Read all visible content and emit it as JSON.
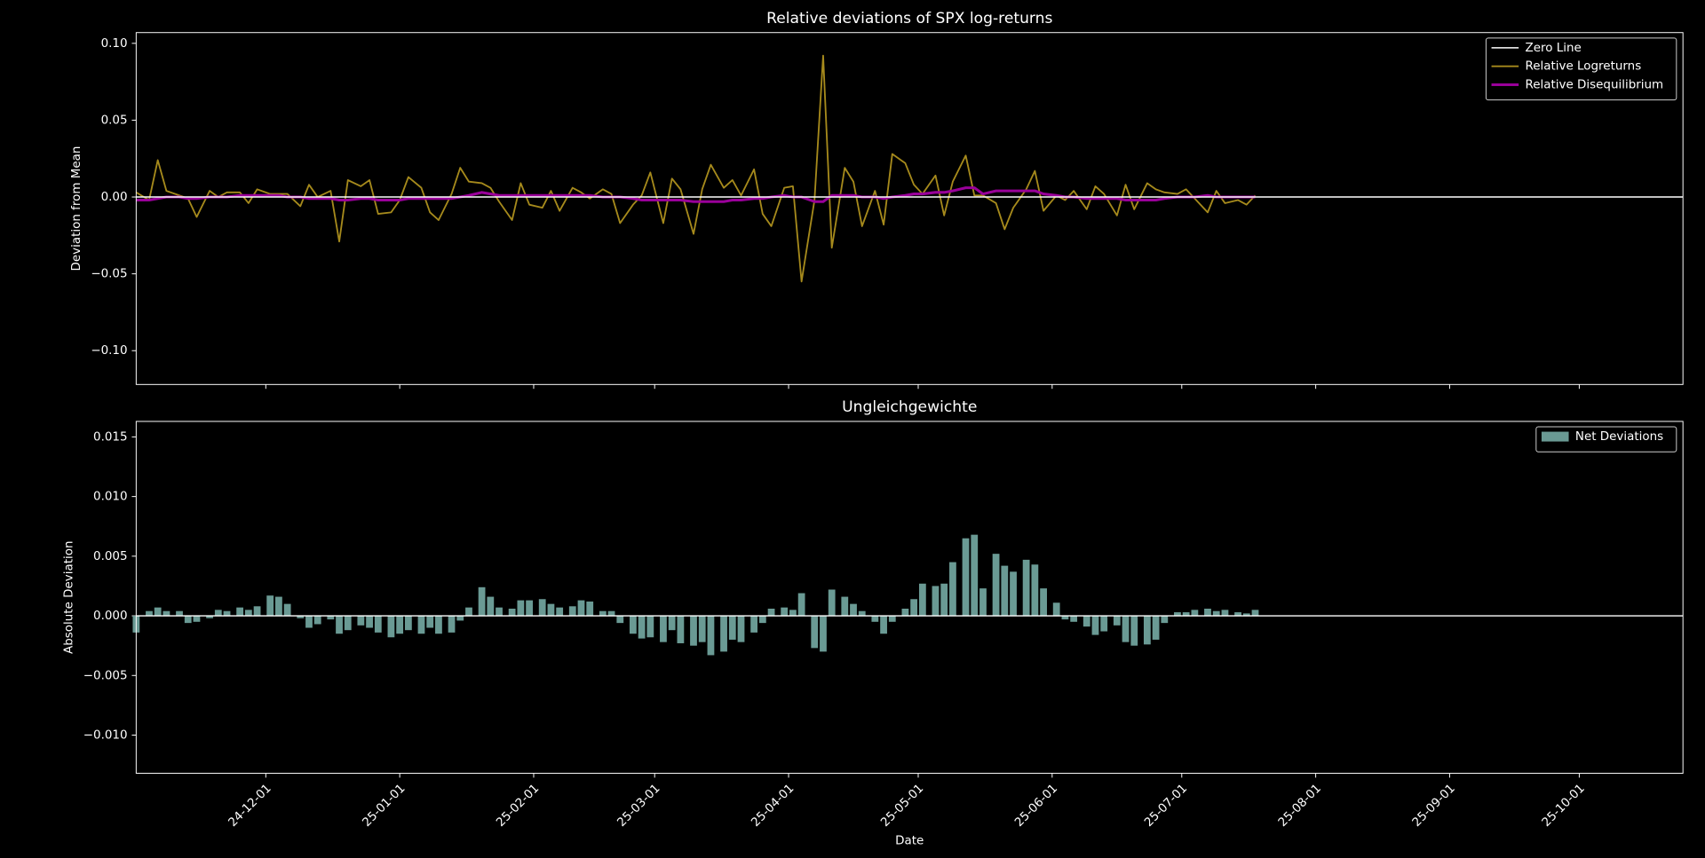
{
  "chart_data": [
    {
      "type": "line",
      "title": "Relative deviations of SPX log-returns",
      "ylabel": "Deviation from Mean",
      "x": [
        "2024-11-01",
        "2024-11-04",
        "2024-11-06",
        "2024-11-08",
        "2024-11-11",
        "2024-11-13",
        "2024-11-15",
        "2024-11-18",
        "2024-11-20",
        "2024-11-22",
        "2024-11-25",
        "2024-11-27",
        "2024-11-29",
        "2024-12-02",
        "2024-12-04",
        "2024-12-06",
        "2024-12-09",
        "2024-12-11",
        "2024-12-13",
        "2024-12-16",
        "2024-12-18",
        "2024-12-20",
        "2024-12-23",
        "2024-12-25",
        "2024-12-27",
        "2024-12-30",
        "2025-01-01",
        "2025-01-03",
        "2025-01-06",
        "2025-01-08",
        "2025-01-10",
        "2025-01-13",
        "2025-01-15",
        "2025-01-17",
        "2025-01-20",
        "2025-01-22",
        "2025-01-24",
        "2025-01-27",
        "2025-01-29",
        "2025-01-31",
        "2025-02-03",
        "2025-02-05",
        "2025-02-07",
        "2025-02-10",
        "2025-02-12",
        "2025-02-14",
        "2025-02-17",
        "2025-02-19",
        "2025-02-21",
        "2025-02-24",
        "2025-02-26",
        "2025-02-28",
        "2025-03-03",
        "2025-03-05",
        "2025-03-07",
        "2025-03-10",
        "2025-03-12",
        "2025-03-14",
        "2025-03-17",
        "2025-03-19",
        "2025-03-21",
        "2025-03-24",
        "2025-03-26",
        "2025-03-28",
        "2025-03-31",
        "2025-04-02",
        "2025-04-04",
        "2025-04-07",
        "2025-04-09",
        "2025-04-11",
        "2025-04-14",
        "2025-04-16",
        "2025-04-18",
        "2025-04-21",
        "2025-04-23",
        "2025-04-25",
        "2025-04-28",
        "2025-04-30",
        "2025-05-02",
        "2025-05-05",
        "2025-05-07",
        "2025-05-09",
        "2025-05-12",
        "2025-05-14",
        "2025-05-16",
        "2025-05-19",
        "2025-05-21",
        "2025-05-23",
        "2025-05-26",
        "2025-05-28",
        "2025-05-30",
        "2025-06-02",
        "2025-06-04",
        "2025-06-06",
        "2025-06-09",
        "2025-06-11",
        "2025-06-13",
        "2025-06-16",
        "2025-06-18",
        "2025-06-20",
        "2025-06-23",
        "2025-06-25",
        "2025-06-27",
        "2025-06-30",
        "2025-07-02",
        "2025-07-04",
        "2025-07-07",
        "2025-07-09",
        "2025-07-11",
        "2025-07-14",
        "2025-07-16",
        "2025-07-18"
      ],
      "hline": {
        "name": "Zero Line",
        "color": "#ffffff",
        "value": 0
      },
      "series": [
        {
          "name": "Relative Logreturns",
          "color": "#a68a1c",
          "width": 1.5,
          "values": [
            0.003,
            -0.002,
            0.024,
            0.004,
            0.001,
            -0.001,
            -0.013,
            0.004,
            0.0,
            0.003,
            0.003,
            -0.004,
            0.005,
            0.002,
            0.002,
            0.002,
            -0.006,
            0.008,
            0.0,
            0.004,
            -0.029,
            0.011,
            0.007,
            0.011,
            -0.011,
            -0.01,
            -0.002,
            0.013,
            0.006,
            -0.01,
            -0.015,
            0.002,
            0.019,
            0.01,
            0.009,
            0.006,
            -0.003,
            -0.015,
            0.009,
            -0.005,
            -0.007,
            0.004,
            -0.009,
            0.006,
            0.003,
            -0.001,
            0.005,
            0.002,
            -0.017,
            -0.005,
            0.001,
            0.016,
            -0.017,
            0.012,
            0.005,
            -0.024,
            0.005,
            0.021,
            0.006,
            0.011,
            0.001,
            0.018,
            -0.011,
            -0.019,
            0.006,
            0.007,
            -0.055,
            -0.002,
            0.092,
            -0.033,
            0.019,
            0.01,
            -0.019,
            0.004,
            -0.018,
            0.028,
            0.022,
            0.008,
            0.002,
            0.014,
            -0.012,
            0.01,
            0.027,
            0.001,
            0.001,
            -0.004,
            -0.021,
            -0.007,
            0.005,
            0.017,
            -0.009,
            0.001,
            -0.002,
            0.004,
            -0.008,
            0.007,
            0.002,
            -0.012,
            0.008,
            -0.008,
            0.009,
            0.005,
            0.003,
            0.002,
            0.005,
            -0.001,
            -0.01,
            0.004,
            -0.004,
            -0.002,
            -0.005,
            0.001
          ]
        },
        {
          "name": "Relative Disequilibrium",
          "color": "#990099",
          "width": 2.5,
          "values": [
            -0.002,
            -0.002,
            -0.001,
            0,
            0,
            -0.001,
            -0.001,
            0,
            0,
            0,
            0.001,
            0.001,
            0.001,
            0.001,
            0.001,
            0,
            0,
            -0.001,
            -0.001,
            -0.001,
            -0.002,
            -0.002,
            -0.001,
            -0.001,
            -0.002,
            -0.002,
            -0.002,
            -0.001,
            -0.001,
            -0.001,
            -0.001,
            -0.001,
            0,
            0.001,
            0.003,
            0.002,
            0.001,
            0.001,
            0.001,
            0.001,
            0.001,
            0.001,
            0.001,
            0.001,
            0.001,
            0.001,
            0,
            0,
            0,
            -0.001,
            -0.002,
            -0.002,
            -0.002,
            -0.002,
            -0.002,
            -0.003,
            -0.003,
            -0.003,
            -0.003,
            -0.002,
            -0.002,
            -0.001,
            -0.001,
            0,
            0.001,
            0,
            0,
            -0.003,
            -0.003,
            0.001,
            0.001,
            0.001,
            0,
            0,
            -0.001,
            0,
            0.001,
            0.002,
            0.002,
            0.003,
            0.003,
            0.004,
            0.006,
            0.006,
            0.002,
            0.004,
            0.004,
            0.004,
            0.004,
            0.004,
            0.002,
            0.001,
            0,
            0,
            -0.001,
            -0.001,
            -0.001,
            -0.001,
            -0.002,
            -0.002,
            -0.002,
            -0.002,
            -0.001,
            0,
            0,
            0,
            0.001,
            0,
            0,
            0,
            0,
            0
          ]
        }
      ],
      "xlim": [
        "2024-11-01",
        "2025-10-25"
      ],
      "ylim": [
        -0.122,
        0.107
      ],
      "yticks": [
        {
          "value": -0.1,
          "label": "−0.10"
        },
        {
          "value": -0.05,
          "label": "−0.05"
        },
        {
          "value": 0,
          "label": "0.00"
        },
        {
          "value": 0.05,
          "label": "0.05"
        },
        {
          "value": 0.1,
          "label": "0.10"
        }
      ],
      "legend": "upper right",
      "grid": false
    },
    {
      "type": "bar",
      "title": "Ungleichgewichte",
      "ylabel": "Absolute Deviation",
      "xlabel": "Date",
      "x": [
        "2024-11-01",
        "2024-11-04",
        "2024-11-06",
        "2024-11-08",
        "2024-11-11",
        "2024-11-13",
        "2024-11-15",
        "2024-11-18",
        "2024-11-20",
        "2024-11-22",
        "2024-11-25",
        "2024-11-27",
        "2024-11-29",
        "2024-12-02",
        "2024-12-04",
        "2024-12-06",
        "2024-12-09",
        "2024-12-11",
        "2024-12-13",
        "2024-12-16",
        "2024-12-18",
        "2024-12-20",
        "2024-12-23",
        "2024-12-25",
        "2024-12-27",
        "2024-12-30",
        "2025-01-01",
        "2025-01-03",
        "2025-01-06",
        "2025-01-08",
        "2025-01-10",
        "2025-01-13",
        "2025-01-15",
        "2025-01-17",
        "2025-01-20",
        "2025-01-22",
        "2025-01-24",
        "2025-01-27",
        "2025-01-29",
        "2025-01-31",
        "2025-02-03",
        "2025-02-05",
        "2025-02-07",
        "2025-02-10",
        "2025-02-12",
        "2025-02-14",
        "2025-02-17",
        "2025-02-19",
        "2025-02-21",
        "2025-02-24",
        "2025-02-26",
        "2025-02-28",
        "2025-03-03",
        "2025-03-05",
        "2025-03-07",
        "2025-03-10",
        "2025-03-12",
        "2025-03-14",
        "2025-03-17",
        "2025-03-19",
        "2025-03-21",
        "2025-03-24",
        "2025-03-26",
        "2025-03-28",
        "2025-03-31",
        "2025-04-02",
        "2025-04-04",
        "2025-04-07",
        "2025-04-09",
        "2025-04-11",
        "2025-04-14",
        "2025-04-16",
        "2025-04-18",
        "2025-04-21",
        "2025-04-23",
        "2025-04-25",
        "2025-04-28",
        "2025-04-30",
        "2025-05-02",
        "2025-05-05",
        "2025-05-07",
        "2025-05-09",
        "2025-05-12",
        "2025-05-14",
        "2025-05-16",
        "2025-05-19",
        "2025-05-21",
        "2025-05-23",
        "2025-05-26",
        "2025-05-28",
        "2025-05-30",
        "2025-06-02",
        "2025-06-04",
        "2025-06-06",
        "2025-06-09",
        "2025-06-11",
        "2025-06-13",
        "2025-06-16",
        "2025-06-18",
        "2025-06-20",
        "2025-06-23",
        "2025-06-25",
        "2025-06-27",
        "2025-06-30",
        "2025-07-02",
        "2025-07-04",
        "2025-07-07",
        "2025-07-09",
        "2025-07-11",
        "2025-07-14",
        "2025-07-16",
        "2025-07-18"
      ],
      "hline": {
        "color": "#ffffff",
        "value": 0
      },
      "series": [
        {
          "name": "Net Deviations",
          "color": "#6a9a94",
          "values": [
            -0.0014,
            0.0004,
            0.0007,
            0.0004,
            0.0004,
            -0.0006,
            -0.0005,
            -0.0002,
            0.0005,
            0.0004,
            0.0007,
            0.0005,
            0.0008,
            0.0017,
            0.0016,
            0.001,
            -0.0002,
            -0.001,
            -0.0007,
            -0.0003,
            -0.0015,
            -0.0012,
            -0.0008,
            -0.001,
            -0.0014,
            -0.0018,
            -0.0015,
            -0.0012,
            -0.0015,
            -0.001,
            -0.0015,
            -0.0014,
            -0.0004,
            0.0007,
            0.0024,
            0.0016,
            0.0007,
            0.0006,
            0.0013,
            0.0013,
            0.0014,
            0.001,
            0.0007,
            0.0008,
            0.0013,
            0.0012,
            0.0004,
            0.0004,
            -0.0006,
            -0.0015,
            -0.0019,
            -0.0018,
            -0.0022,
            -0.0012,
            -0.0023,
            -0.0025,
            -0.0022,
            -0.0033,
            -0.003,
            -0.002,
            -0.0022,
            -0.0014,
            -0.0006,
            0.0006,
            0.0007,
            0.0005,
            0.0019,
            -0.0027,
            -0.003,
            0.0022,
            0.0016,
            0.001,
            0.0004,
            -0.0005,
            -0.0015,
            -0.0005,
            0.0006,
            0.0014,
            0.0027,
            0.0025,
            0.0027,
            0.0045,
            0.0065,
            0.0068,
            0.0023,
            0.0052,
            0.0042,
            0.0037,
            0.0047,
            0.0043,
            0.0023,
            0.0011,
            -0.0003,
            -0.0005,
            -0.0009,
            -0.0016,
            -0.0013,
            -0.0008,
            -0.0022,
            -0.0025,
            -0.0024,
            -0.002,
            -0.0006,
            0.0003,
            0.0003,
            0.0005,
            0.0006,
            0.0004,
            0.0005,
            0.0003,
            0.0002,
            0.0005
          ]
        }
      ],
      "xlim": [
        "2024-11-01",
        "2025-10-25"
      ],
      "ylim": [
        -0.0132,
        0.0163
      ],
      "yticks": [
        {
          "value": -0.01,
          "label": "−0.010"
        },
        {
          "value": -0.005,
          "label": "−0.005"
        },
        {
          "value": 0,
          "label": "0.000"
        },
        {
          "value": 0.005,
          "label": "0.005"
        },
        {
          "value": 0.01,
          "label": "0.010"
        },
        {
          "value": 0.015,
          "label": "0.015"
        }
      ],
      "xticks": [
        {
          "value": "2024-12-01",
          "label": "24-12-01"
        },
        {
          "value": "2025-01-01",
          "label": "25-01-01"
        },
        {
          "value": "2025-02-01",
          "label": "25-02-01"
        },
        {
          "value": "2025-03-01",
          "label": "25-03-01"
        },
        {
          "value": "2025-04-01",
          "label": "25-04-01"
        },
        {
          "value": "2025-05-01",
          "label": "25-05-01"
        },
        {
          "value": "2025-06-01",
          "label": "25-06-01"
        },
        {
          "value": "2025-07-01",
          "label": "25-07-01"
        },
        {
          "value": "2025-08-01",
          "label": "25-08-01"
        },
        {
          "value": "2025-09-01",
          "label": "25-09-01"
        },
        {
          "value": "2025-10-01",
          "label": "25-10-01"
        }
      ],
      "legend": "upper right",
      "grid": false
    }
  ]
}
